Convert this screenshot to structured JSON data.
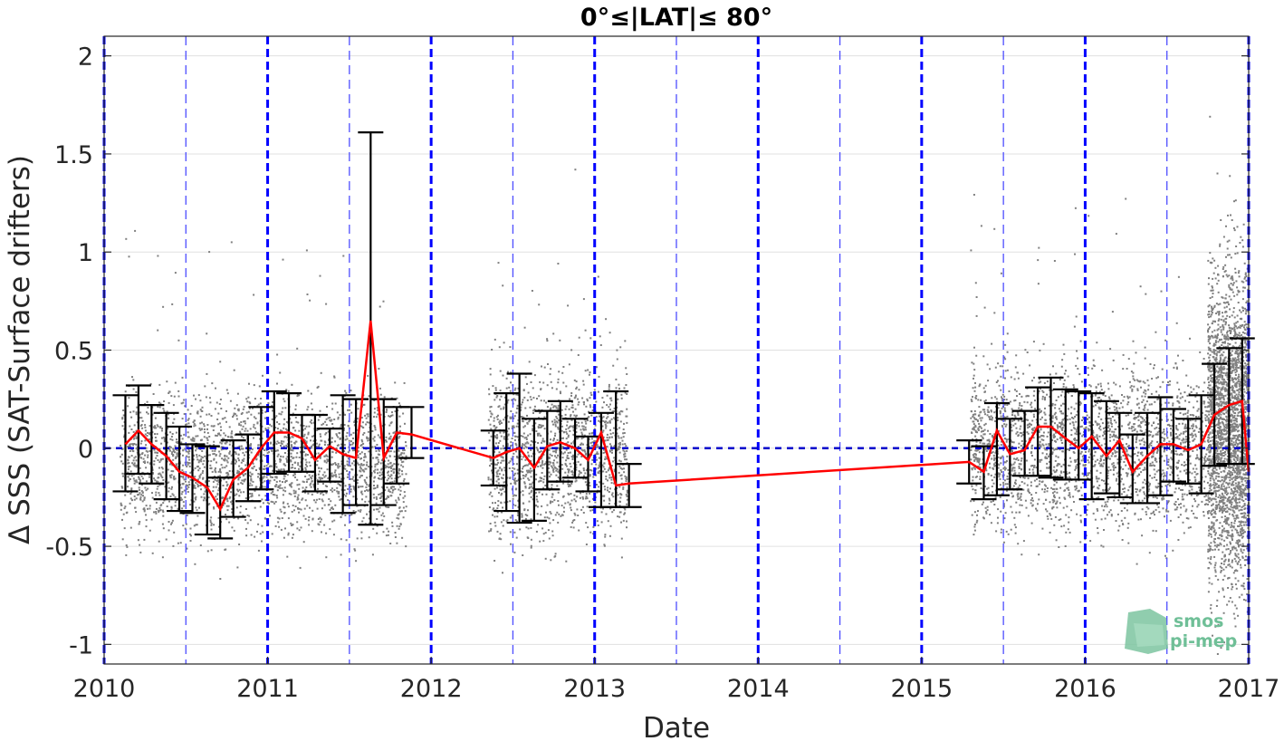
{
  "chart_data": {
    "type": "scatter",
    "title": "0°≤|LAT|≤ 80°",
    "xlabel": "Date",
    "ylabel": "Δ SSS (SAT-Surface drifters)",
    "xlim": [
      2010,
      2017
    ],
    "ylim": [
      -1.1,
      2.1
    ],
    "x_ticks": [
      2010,
      2011,
      2012,
      2013,
      2014,
      2015,
      2016,
      2017
    ],
    "x_tick_labels": [
      "2010",
      "2011",
      "2012",
      "2013",
      "2014",
      "2015",
      "2016",
      "2017"
    ],
    "y_ticks": [
      -1,
      -0.5,
      0,
      0.5,
      1,
      1.5,
      2
    ],
    "y_tick_labels": [
      "-1",
      "-0.5",
      "0",
      "0.5",
      "1",
      "1.5",
      "2"
    ],
    "grid": true,
    "reference_line_y": 0,
    "year_lines_x": [
      2010,
      2011,
      2012,
      2013,
      2014,
      2015,
      2016,
      2017
    ],
    "half_year_lines_x": [
      2010.5,
      2011.5,
      2012.5,
      2013.5,
      2014.5,
      2015.5,
      2016.5
    ],
    "colors": {
      "scatter": "#808080",
      "mean_line": "#ff0000",
      "error_bar": "#000000",
      "year_line": "#0000ff",
      "half_year_line": "#4d4dff",
      "reference_line": "#0000cc",
      "grid": "#e0e0e0",
      "axis": "#262626"
    },
    "scatter_density": [
      {
        "x_start": 2010.1,
        "x_end": 2011.85,
        "center": -0.08,
        "spread": 0.17,
        "count": 2600
      },
      {
        "x_start": 2012.35,
        "x_end": 2013.2,
        "center": -0.03,
        "spread": 0.2,
        "count": 1500
      },
      {
        "x_start": 2015.3,
        "x_end": 2016.75,
        "center": 0.0,
        "spread": 0.2,
        "count": 2400
      },
      {
        "x_start": 2016.75,
        "x_end": 2017.0,
        "center": 0.1,
        "spread": 0.38,
        "count": 2600
      }
    ],
    "series": [
      {
        "x": [
          2010.13,
          2010.21,
          2010.29,
          2010.38,
          2010.46,
          2010.54,
          2010.63,
          2010.71,
          2010.79,
          2010.88,
          2010.96,
          2011.04,
          2011.13,
          2011.21,
          2011.29,
          2011.38,
          2011.46,
          2011.54,
          2011.63,
          2011.71,
          2011.79,
          2011.88,
          2012.38,
          2012.46,
          2012.54,
          2012.63,
          2012.71,
          2012.79,
          2012.88,
          2012.96,
          2013.04,
          2013.13,
          2013.21,
          2015.29,
          2015.38,
          2015.46,
          2015.54,
          2015.63,
          2015.71,
          2015.79,
          2015.88,
          2015.96,
          2016.04,
          2016.13,
          2016.21,
          2016.29,
          2016.38,
          2016.46,
          2016.54,
          2016.63,
          2016.71,
          2016.79,
          2016.88,
          2016.96,
          2017.0
        ],
        "mean": [
          0.02,
          0.09,
          0.02,
          -0.04,
          -0.12,
          -0.15,
          -0.2,
          -0.31,
          -0.16,
          -0.1,
          0.0,
          0.08,
          0.08,
          0.05,
          -0.06,
          0.01,
          -0.03,
          -0.05,
          0.65,
          -0.05,
          0.08,
          0.07,
          -0.05,
          -0.02,
          0.0,
          -0.1,
          0.01,
          0.03,
          0.0,
          -0.06,
          0.08,
          -0.19,
          -0.18,
          -0.07,
          -0.12,
          0.09,
          -0.03,
          -0.01,
          0.11,
          0.11,
          0.05,
          0.0,
          0.06,
          -0.04,
          0.04,
          -0.12,
          -0.04,
          0.02,
          0.02,
          -0.01,
          0.02,
          0.17,
          0.22,
          0.24,
          -0.12
        ],
        "err_low": [
          -0.22,
          -0.13,
          -0.18,
          -0.26,
          -0.32,
          -0.33,
          -0.44,
          -0.46,
          -0.35,
          -0.27,
          -0.21,
          -0.13,
          -0.12,
          -0.12,
          -0.22,
          -0.17,
          -0.33,
          -0.29,
          -0.39,
          -0.29,
          -0.18,
          -0.05,
          -0.19,
          -0.32,
          -0.38,
          -0.37,
          -0.21,
          -0.17,
          -0.15,
          -0.22,
          -0.3,
          -0.3,
          -0.3,
          -0.18,
          -0.26,
          -0.24,
          -0.21,
          -0.14,
          -0.14,
          -0.15,
          -0.16,
          -0.16,
          -0.26,
          -0.23,
          -0.25,
          -0.28,
          -0.28,
          -0.24,
          -0.17,
          -0.18,
          -0.23,
          -0.09,
          -0.08,
          -0.08,
          -0.12
        ],
        "err_high": [
          0.27,
          0.32,
          0.22,
          0.18,
          0.11,
          0.02,
          0.01,
          -0.15,
          0.04,
          0.07,
          0.21,
          0.29,
          0.28,
          0.17,
          0.17,
          0.1,
          0.27,
          0.25,
          1.61,
          0.25,
          0.21,
          0.21,
          0.09,
          0.28,
          0.38,
          0.15,
          0.19,
          0.24,
          0.15,
          0.06,
          0.18,
          0.29,
          -0.08,
          0.04,
          0.01,
          0.23,
          0.15,
          0.19,
          0.31,
          0.36,
          0.3,
          0.29,
          0.28,
          0.24,
          0.18,
          0.07,
          0.18,
          0.26,
          0.2,
          0.15,
          0.27,
          0.43,
          0.51,
          0.56,
          -0.12
        ]
      }
    ]
  },
  "logo": {
    "line1": "smos",
    "line2": "pi-mep"
  }
}
